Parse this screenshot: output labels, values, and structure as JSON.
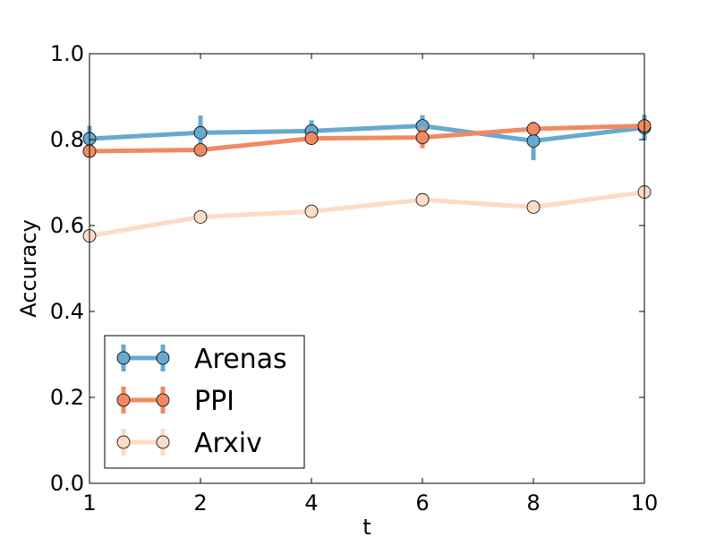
{
  "chart_data": {
    "type": "line",
    "title": "",
    "xlabel": "t",
    "ylabel": "Accuracy",
    "x": [
      1,
      2,
      4,
      6,
      8,
      10
    ],
    "x_tick_labels": [
      "1",
      "2",
      "4",
      "6",
      "8",
      "10"
    ],
    "ylim": [
      0.0,
      1.0
    ],
    "y_ticks": [
      0.0,
      0.2,
      0.4,
      0.6,
      0.8,
      1.0
    ],
    "y_tick_labels": [
      "0.0",
      "0.2",
      "0.4",
      "0.6",
      "0.8",
      "1.0"
    ],
    "grid": false,
    "legend_position": "lower-left",
    "series": [
      {
        "name": "Arenas",
        "color": "#67a9cf",
        "values": [
          0.802,
          0.816,
          0.82,
          0.832,
          0.797,
          0.828
        ],
        "errors": [
          0.03,
          0.04,
          0.025,
          0.025,
          0.045,
          0.03
        ]
      },
      {
        "name": "PPI",
        "color": "#ef8a62",
        "values": [
          0.773,
          0.776,
          0.803,
          0.805,
          0.825,
          0.832
        ],
        "errors": [
          0.01,
          0.01,
          0.01,
          0.025,
          0.01,
          0.01
        ]
      },
      {
        "name": "Arxiv",
        "color": "#fddbc7",
        "values": [
          0.576,
          0.62,
          0.633,
          0.66,
          0.643,
          0.678
        ],
        "errors": [
          0.01,
          0.01,
          0.01,
          0.01,
          0.01,
          0.01
        ]
      }
    ]
  }
}
